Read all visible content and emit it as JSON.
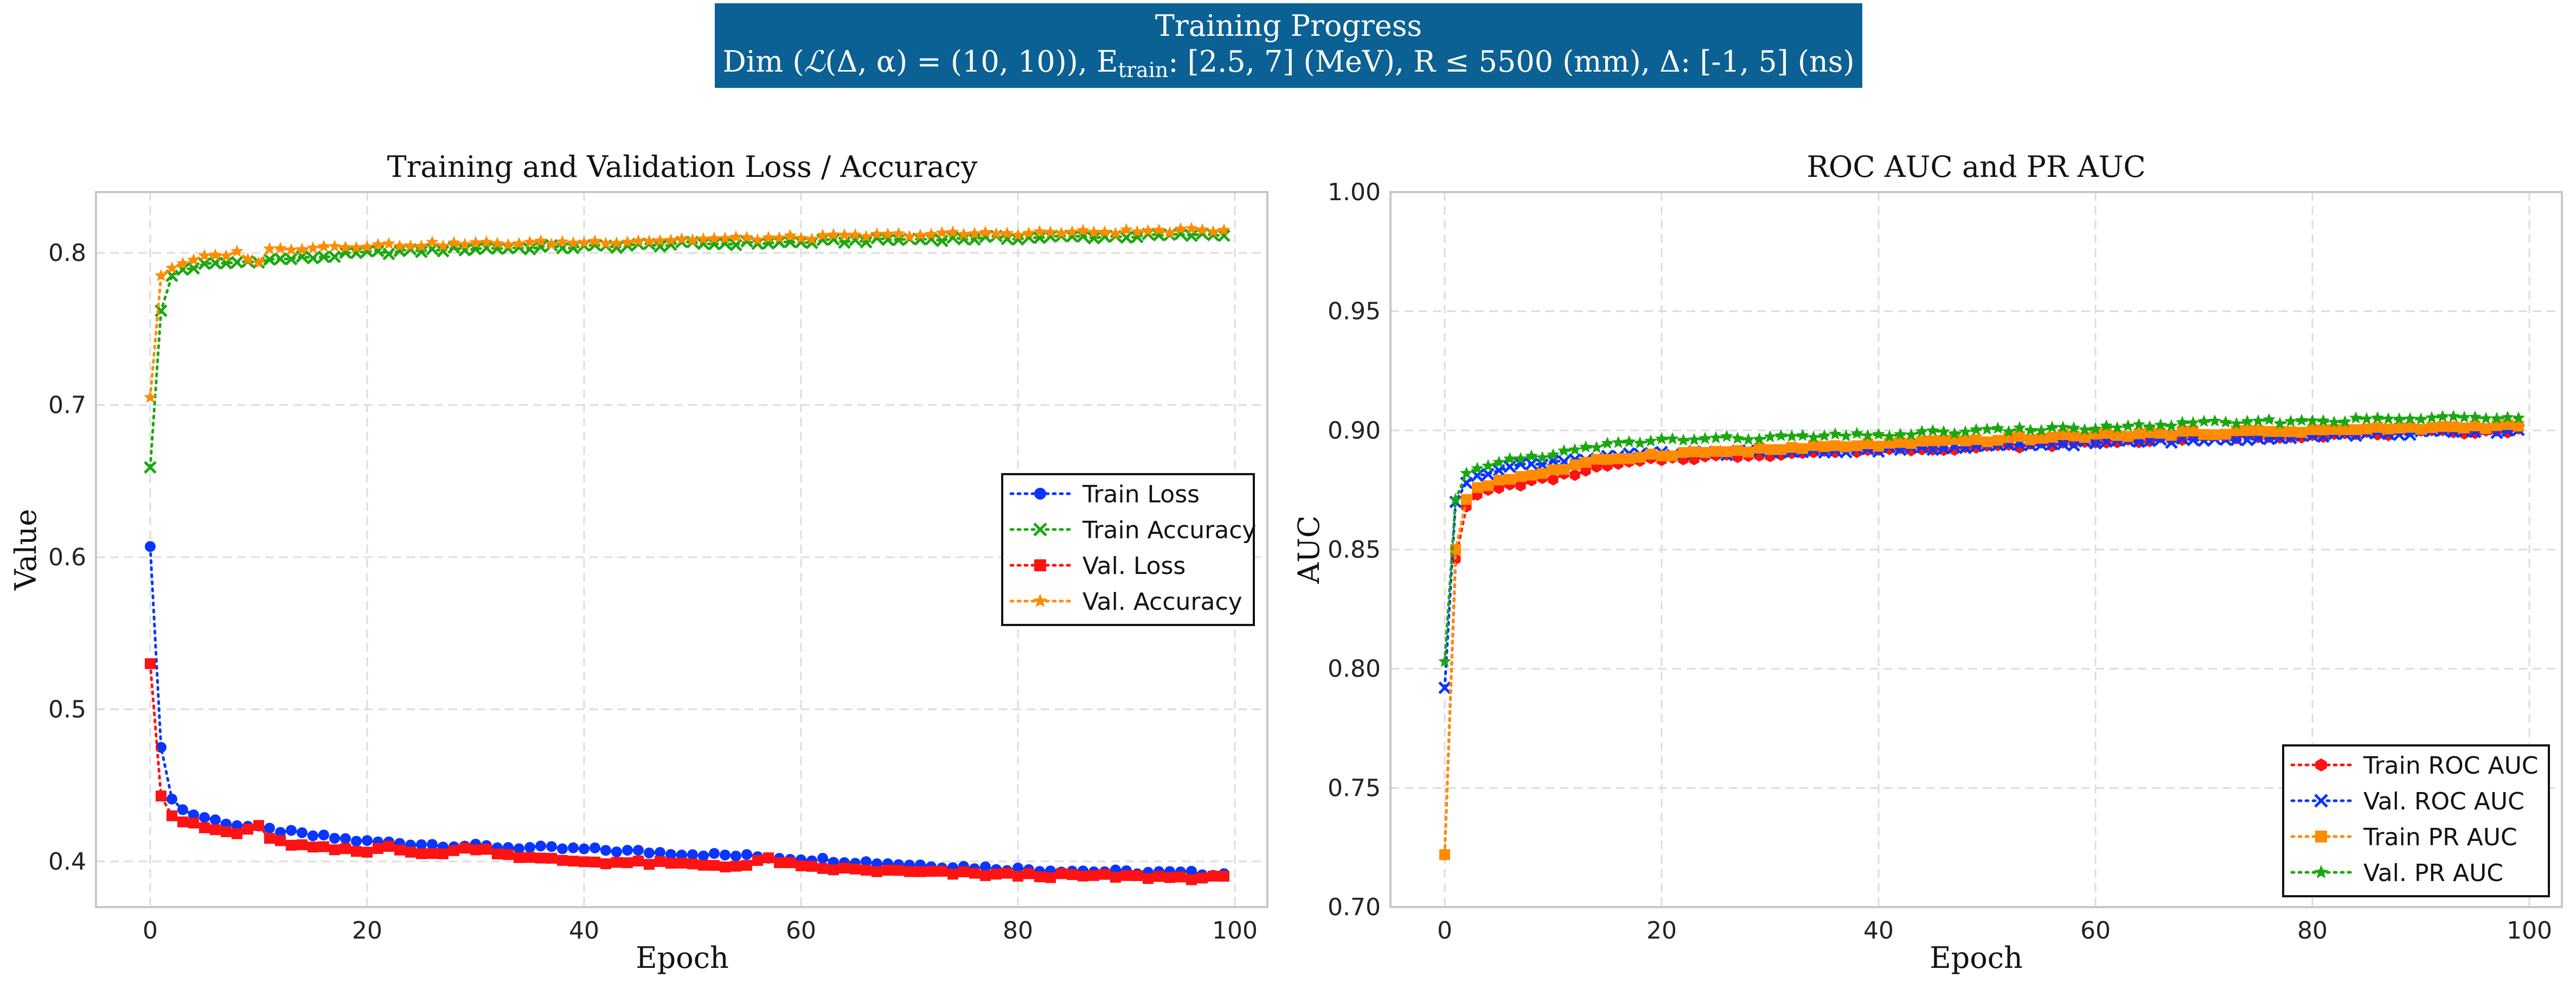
{
  "header": {
    "line1": "Training Progress",
    "line2_prefix": "Dim (",
    "line2_L": "ℒ",
    "line2_mid": "(Δ, α) = (10, 10)), E",
    "line2_sub": "train",
    "line2_suffix": ": [2.5, 7] (MeV), R  ≤  5500 (mm), Δ: [-1, 5] (ns)",
    "bg_color": "#0b6194"
  },
  "chart_data": [
    {
      "type": "line",
      "title": "Training and Validation Loss / Accuracy",
      "xlabel": "Epoch",
      "ylabel": "Value",
      "xlim": [
        -5,
        103
      ],
      "ylim": [
        0.37,
        0.84
      ],
      "xticks": [
        0,
        20,
        40,
        60,
        80,
        100
      ],
      "yticks": [
        0.4,
        0.5,
        0.6,
        0.7,
        0.8
      ],
      "grid": true,
      "legend_position": "center-right",
      "epochs": 100,
      "series": [
        {
          "name": "Train Loss",
          "color": "#0a35ff",
          "marker": "circle",
          "anchors": [
            [
              0,
              0.607
            ],
            [
              1,
              0.475
            ],
            [
              2,
              0.441
            ],
            [
              3,
              0.434
            ],
            [
              4,
              0.431
            ],
            [
              5,
              0.429
            ],
            [
              6,
              0.427
            ],
            [
              8,
              0.424
            ],
            [
              10,
              0.422
            ],
            [
              15,
              0.417
            ],
            [
              20,
              0.413
            ],
            [
              30,
              0.41
            ],
            [
              40,
              0.408
            ],
            [
              50,
              0.405
            ],
            [
              60,
              0.402
            ],
            [
              70,
              0.398
            ],
            [
              80,
              0.395
            ],
            [
              90,
              0.393
            ],
            [
              99,
              0.392
            ]
          ]
        },
        {
          "name": "Train Accuracy",
          "color": "#1aa80f",
          "marker": "x",
          "anchors": [
            [
              0,
              0.659
            ],
            [
              1,
              0.762
            ],
            [
              2,
              0.785
            ],
            [
              3,
              0.789
            ],
            [
              5,
              0.792
            ],
            [
              10,
              0.795
            ],
            [
              15,
              0.797
            ],
            [
              20,
              0.8
            ],
            [
              30,
              0.803
            ],
            [
              40,
              0.804
            ],
            [
              50,
              0.806
            ],
            [
              60,
              0.807
            ],
            [
              70,
              0.809
            ],
            [
              80,
              0.81
            ],
            [
              90,
              0.811
            ],
            [
              99,
              0.812
            ]
          ]
        },
        {
          "name": "Val. Loss",
          "color": "#ff1212",
          "marker": "square",
          "anchors": [
            [
              0,
              0.53
            ],
            [
              1,
              0.443
            ],
            [
              2,
              0.43
            ],
            [
              3,
              0.426
            ],
            [
              5,
              0.422
            ],
            [
              8,
              0.418
            ],
            [
              10,
              0.424
            ],
            [
              11,
              0.414
            ],
            [
              15,
              0.409
            ],
            [
              20,
              0.406
            ],
            [
              22,
              0.411
            ],
            [
              25,
              0.404
            ],
            [
              30,
              0.409
            ],
            [
              35,
              0.402
            ],
            [
              40,
              0.4
            ],
            [
              50,
              0.398
            ],
            [
              55,
              0.397
            ],
            [
              57,
              0.402
            ],
            [
              60,
              0.396
            ],
            [
              70,
              0.393
            ],
            [
              80,
              0.391
            ],
            [
              90,
              0.39
            ],
            [
              99,
              0.389
            ]
          ]
        },
        {
          "name": "Val. Accuracy",
          "color": "#ff8c00",
          "marker": "star",
          "anchors": [
            [
              0,
              0.705
            ],
            [
              1,
              0.785
            ],
            [
              2,
              0.79
            ],
            [
              3,
              0.793
            ],
            [
              5,
              0.797
            ],
            [
              8,
              0.8
            ],
            [
              10,
              0.794
            ],
            [
              11,
              0.802
            ],
            [
              15,
              0.804
            ],
            [
              20,
              0.805
            ],
            [
              30,
              0.806
            ],
            [
              40,
              0.807
            ],
            [
              50,
              0.809
            ],
            [
              60,
              0.81
            ],
            [
              70,
              0.812
            ],
            [
              80,
              0.813
            ],
            [
              90,
              0.814
            ],
            [
              99,
              0.815
            ]
          ]
        }
      ]
    },
    {
      "type": "line",
      "title": "ROC AUC and PR AUC",
      "xlabel": "Epoch",
      "ylabel": "AUC",
      "xlim": [
        -5,
        103
      ],
      "ylim": [
        0.7,
        1.0
      ],
      "xticks": [
        0,
        20,
        40,
        60,
        80,
        100
      ],
      "yticks": [
        0.7,
        0.75,
        0.8,
        0.85,
        0.9,
        0.95,
        1.0
      ],
      "ytick_labels": [
        "0.70",
        "0.75",
        "0.80",
        "0.85",
        "0.90",
        "0.95",
        "1.00"
      ],
      "grid": true,
      "legend_position": "lower-right",
      "epochs": 100,
      "series": [
        {
          "name": "Train ROC AUC",
          "color": "#ff1212",
          "marker": "hexagon",
          "anchors": [
            [
              0,
              0.722
            ],
            [
              1,
              0.846
            ],
            [
              2,
              0.868
            ],
            [
              3,
              0.873
            ],
            [
              5,
              0.876
            ],
            [
              10,
              0.88
            ],
            [
              15,
              0.885
            ],
            [
              20,
              0.888
            ],
            [
              30,
              0.89
            ],
            [
              40,
              0.892
            ],
            [
              50,
              0.893
            ],
            [
              60,
              0.895
            ],
            [
              70,
              0.897
            ],
            [
              80,
              0.898
            ],
            [
              90,
              0.899
            ],
            [
              99,
              0.9
            ]
          ]
        },
        {
          "name": "Val. ROC AUC",
          "color": "#0a35ff",
          "marker": "x",
          "anchors": [
            [
              0,
              0.792
            ],
            [
              1,
              0.87
            ],
            [
              2,
              0.878
            ],
            [
              3,
              0.881
            ],
            [
              5,
              0.884
            ],
            [
              10,
              0.887
            ],
            [
              15,
              0.889
            ],
            [
              20,
              0.89
            ],
            [
              30,
              0.891
            ],
            [
              40,
              0.892
            ],
            [
              50,
              0.893
            ],
            [
              60,
              0.895
            ],
            [
              70,
              0.896
            ],
            [
              80,
              0.898
            ],
            [
              90,
              0.899
            ],
            [
              99,
              0.9
            ]
          ]
        },
        {
          "name": "Train PR AUC",
          "color": "#ff8c00",
          "marker": "square",
          "anchors": [
            [
              0,
              0.722
            ],
            [
              1,
              0.85
            ],
            [
              2,
              0.871
            ],
            [
              3,
              0.876
            ],
            [
              5,
              0.879
            ],
            [
              10,
              0.883
            ],
            [
              15,
              0.888
            ],
            [
              20,
              0.89
            ],
            [
              30,
              0.892
            ],
            [
              40,
              0.894
            ],
            [
              50,
              0.896
            ],
            [
              60,
              0.898
            ],
            [
              70,
              0.899
            ],
            [
              80,
              0.9
            ],
            [
              90,
              0.901
            ],
            [
              99,
              0.902
            ]
          ]
        },
        {
          "name": "Val. PR AUC",
          "color": "#1aa80f",
          "marker": "star",
          "anchors": [
            [
              0,
              0.803
            ],
            [
              1,
              0.871
            ],
            [
              2,
              0.882
            ],
            [
              3,
              0.884
            ],
            [
              5,
              0.887
            ],
            [
              10,
              0.89
            ],
            [
              15,
              0.894
            ],
            [
              20,
              0.896
            ],
            [
              30,
              0.897
            ],
            [
              40,
              0.898
            ],
            [
              50,
              0.9
            ],
            [
              60,
              0.901
            ],
            [
              70,
              0.903
            ],
            [
              80,
              0.904
            ],
            [
              90,
              0.905
            ],
            [
              99,
              0.906
            ]
          ]
        }
      ]
    }
  ]
}
